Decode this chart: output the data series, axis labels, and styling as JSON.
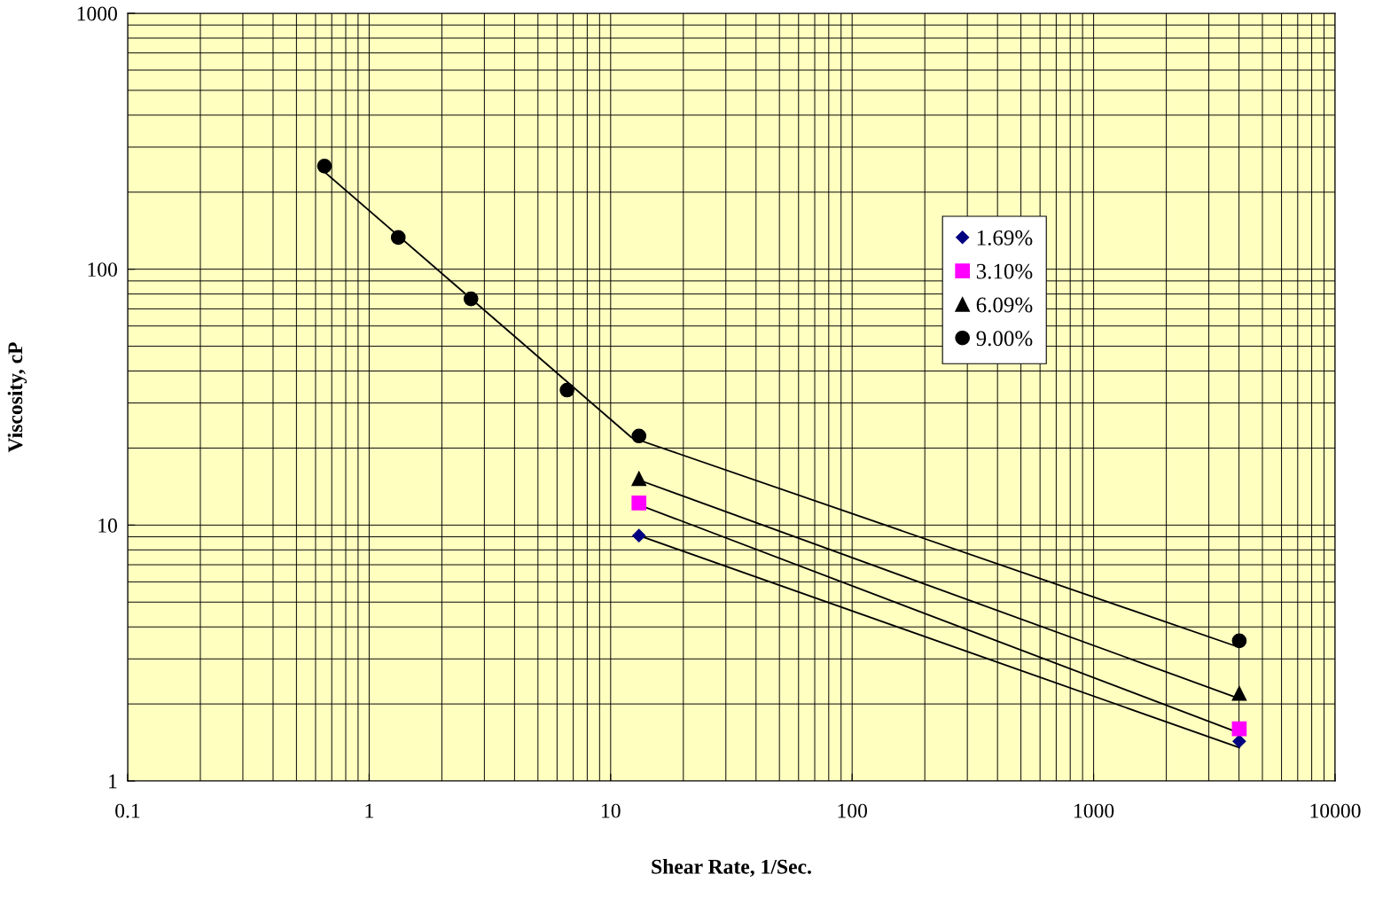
{
  "chart_data": {
    "type": "scatter",
    "xlabel": "Shear Rate, 1/Sec.",
    "ylabel": "Viscosity, cP",
    "log": "xy",
    "grid": true,
    "legend": "upper right",
    "xlim": [
      0.1,
      10000
    ],
    "xticks": [
      0.1,
      1,
      10,
      100,
      1000,
      10000
    ],
    "ylim": [
      1,
      1000
    ],
    "yticks": [
      1,
      10,
      100,
      1000
    ],
    "series": [
      {
        "name": "1.69%",
        "color": "#000080",
        "marker": "diamond",
        "x": [
          13.1,
          4010
        ],
        "values": [
          9.1,
          1.43
        ]
      },
      {
        "name": "3.10%",
        "color": "#ff00ff",
        "marker": "square",
        "x": [
          13.1,
          4010
        ],
        "values": [
          12.2,
          1.6
        ]
      },
      {
        "name": "6.09%",
        "color": "#000000",
        "marker": "triangle",
        "x": [
          13.1,
          4010
        ],
        "values": [
          15.2,
          2.2
        ]
      },
      {
        "name": "9.00%",
        "color": "#000000",
        "marker": "circle",
        "x": [
          0.653,
          1.32,
          2.64,
          6.6,
          13.1,
          4010
        ],
        "values": [
          253,
          133,
          76.6,
          33.7,
          22.3,
          3.53
        ]
      },
      {
        "type": "line",
        "color": "#000000",
        "marker": "none",
        "x": [
          13.1,
          4010
        ],
        "values": [
          9.1,
          1.35
        ]
      },
      {
        "type": "line",
        "color": "#000000",
        "marker": "none",
        "x": [
          13.1,
          4010
        ],
        "values": [
          12.0,
          1.54
        ]
      },
      {
        "type": "line",
        "color": "#000000",
        "marker": "none",
        "x": [
          13.1,
          4010
        ],
        "values": [
          15.0,
          2.1
        ]
      },
      {
        "type": "line",
        "color": "#000000",
        "marker": "none",
        "x": [
          0.653,
          12.2,
          4010
        ],
        "values": [
          240,
          22,
          3.33
        ]
      }
    ]
  }
}
